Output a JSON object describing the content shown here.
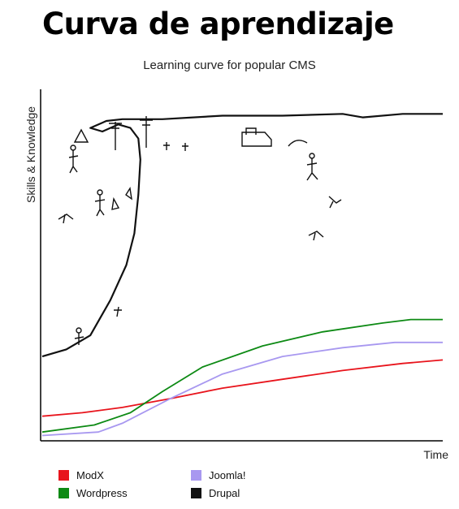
{
  "page_title": "Curva de aprendizaje",
  "colors": {
    "modx": "#e8141c",
    "wordpress": "#0d8a14",
    "joomla": "#a898f0",
    "drupal": "#111111"
  },
  "chart_data": {
    "type": "line",
    "title": "Learning curve for popular CMS",
    "xlabel": "Time",
    "ylabel": "Skills & Knowledge",
    "xlim": [
      0,
      100
    ],
    "ylim": [
      0,
      100
    ],
    "grid": false,
    "legend_position": "bottom-left",
    "series": [
      {
        "name": "ModX",
        "color": "#e8141c",
        "points": [
          [
            0,
            7
          ],
          [
            10,
            8
          ],
          [
            20,
            9.5
          ],
          [
            32,
            12
          ],
          [
            45,
            15
          ],
          [
            60,
            17.5
          ],
          [
            75,
            20
          ],
          [
            90,
            22
          ],
          [
            100,
            23
          ]
        ]
      },
      {
        "name": "Wordpress",
        "color": "#0d8a14",
        "points": [
          [
            0,
            2.5
          ],
          [
            13,
            4.5
          ],
          [
            22,
            8
          ],
          [
            30,
            14
          ],
          [
            40,
            21
          ],
          [
            55,
            27
          ],
          [
            70,
            31
          ],
          [
            85,
            33.5
          ],
          [
            92,
            34.5
          ],
          [
            100,
            34.5
          ]
        ]
      },
      {
        "name": "Joomla!",
        "color": "#a898f0",
        "points": [
          [
            0,
            1.5
          ],
          [
            14,
            2.5
          ],
          [
            20,
            5
          ],
          [
            32,
            12
          ],
          [
            45,
            19
          ],
          [
            60,
            24
          ],
          [
            75,
            26.5
          ],
          [
            88,
            28
          ],
          [
            100,
            28
          ]
        ]
      },
      {
        "name": "Drupal",
        "color": "#111111",
        "points": [
          [
            0,
            24
          ],
          [
            6,
            26
          ],
          [
            12,
            30
          ],
          [
            17,
            40
          ],
          [
            21,
            50
          ],
          [
            23,
            59
          ],
          [
            24,
            70
          ],
          [
            24.5,
            80
          ],
          [
            24,
            86
          ],
          [
            22,
            89
          ],
          [
            19,
            90
          ],
          [
            15,
            88
          ],
          [
            12,
            89
          ],
          [
            16,
            91
          ],
          [
            20,
            91.5
          ],
          [
            30,
            91.5
          ],
          [
            45,
            92.5
          ],
          [
            60,
            92.5
          ],
          [
            75,
            93
          ],
          [
            80,
            92
          ],
          [
            90,
            93
          ],
          [
            100,
            93
          ]
        ]
      }
    ]
  },
  "legend": {
    "items": [
      {
        "label": "ModX",
        "color": "#e8141c"
      },
      {
        "label": "Joomla!",
        "color": "#a898f0"
      },
      {
        "label": "Wordpress",
        "color": "#0d8a14"
      },
      {
        "label": "Drupal",
        "color": "#111111"
      }
    ]
  }
}
